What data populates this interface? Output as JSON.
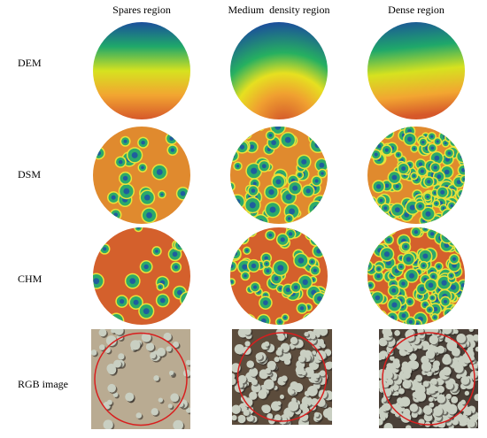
{
  "columns": [
    "Spares region",
    "Medium  density region",
    "Dense region"
  ],
  "rows": [
    "DEM",
    "DSM",
    "CHM",
    "RGB image"
  ]
}
